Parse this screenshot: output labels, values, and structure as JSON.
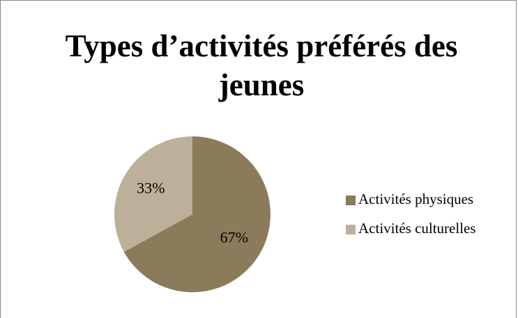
{
  "chart_data": {
    "type": "pie",
    "title": "Types d’activités préférés des jeunes",
    "categories": [
      "Activités physiques",
      "Activités culturelles"
    ],
    "values": [
      67,
      33
    ],
    "value_labels": [
      "67%",
      "33%"
    ],
    "colors": [
      "#8b7b5b",
      "#bdb09a"
    ],
    "legend": "right"
  }
}
